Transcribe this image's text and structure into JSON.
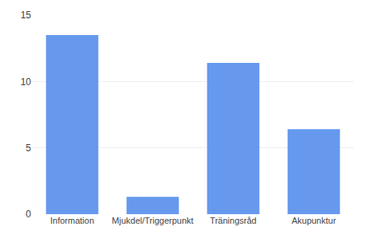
{
  "chart_data": {
    "type": "bar",
    "categories": [
      "Information",
      "Mjukdel/Triggerpunkt",
      "Träningsråd",
      "Akupunktur"
    ],
    "values": [
      13.5,
      1.3,
      11.4,
      6.4
    ],
    "color": "#6699ee",
    "ylim": [
      0,
      15
    ],
    "yticks": [
      0,
      5,
      10,
      15
    ],
    "grid": true
  }
}
